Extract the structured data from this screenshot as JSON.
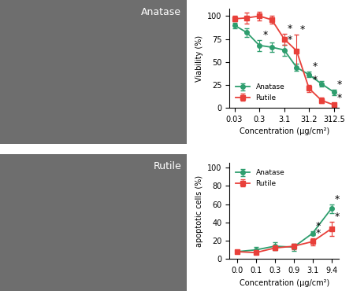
{
  "images": [
    {
      "label": "Anatase"
    },
    {
      "label": "Rutile"
    }
  ],
  "chart_data": [
    {
      "type": "line",
      "x_label": "Concentration (μg/cm²)",
      "y_label": "Viability (%)",
      "categories": [
        "0.03",
        null,
        "0.3",
        null,
        "3.1",
        null,
        "31.2",
        null,
        "312.5"
      ],
      "ylim": [
        0,
        108
      ],
      "yticks": [
        0,
        25,
        50,
        75,
        100
      ],
      "legend": "lower left",
      "series": [
        {
          "name": "Anatase",
          "color": "#2e9e6e",
          "marker": "o",
          "values": [
            90,
            82,
            68,
            66,
            63,
            44,
            36,
            26,
            17
          ],
          "errors": [
            3,
            5,
            6,
            5,
            6,
            4,
            3,
            3,
            3
          ]
        },
        {
          "name": "Rutile",
          "color": "#e8403a",
          "marker": "s",
          "values": [
            97,
            98,
            100,
            96,
            75,
            62,
            21,
            8,
            3
          ],
          "errors": [
            3,
            6,
            5,
            4,
            6,
            18,
            4,
            3,
            2
          ]
        }
      ],
      "annotations": [
        {
          "text": "*",
          "series": "Anatase",
          "index": 2
        },
        {
          "text": "*",
          "series": "Anatase",
          "index": 4
        },
        {
          "text": "*",
          "series": "Anatase",
          "index": 6
        },
        {
          "text": "*",
          "series": "Anatase",
          "index": 8
        },
        {
          "text": "*",
          "series": "Rutile",
          "index": 4
        },
        {
          "text": "*",
          "series": "Rutile",
          "index": 5
        },
        {
          "text": "*",
          "series": "Rutile",
          "index": 6
        },
        {
          "text": "*",
          "series": "Rutile",
          "index": 8
        }
      ]
    },
    {
      "type": "line",
      "x_label": "Concentration (μg/cm²)",
      "y_label": "apoptotic cells (%)",
      "categories": [
        "0.0",
        "0.1",
        "0.3",
        "0.9",
        "3.1",
        "9.4"
      ],
      "ylim": [
        0,
        105
      ],
      "yticks": [
        0,
        20,
        40,
        60,
        80,
        100
      ],
      "legend": "upper left",
      "series": [
        {
          "name": "Anatase",
          "color": "#2e9e6e",
          "marker": "o",
          "values": [
            8,
            10,
            14,
            13,
            28,
            55
          ],
          "errors": [
            2,
            3,
            4,
            4,
            2,
            5
          ]
        },
        {
          "name": "Rutile",
          "color": "#e8403a",
          "marker": "s",
          "values": [
            8,
            7,
            12,
            14,
            19,
            33
          ],
          "errors": [
            1,
            2,
            2,
            3,
            4,
            8
          ]
        }
      ],
      "annotations": [
        {
          "text": "*",
          "series": "Anatase",
          "index": 4
        },
        {
          "text": "*",
          "series": "Anatase",
          "index": 5
        },
        {
          "text": "*",
          "series": "Rutile",
          "index": 4
        },
        {
          "text": "*",
          "series": "Rutile",
          "index": 5
        }
      ]
    }
  ]
}
